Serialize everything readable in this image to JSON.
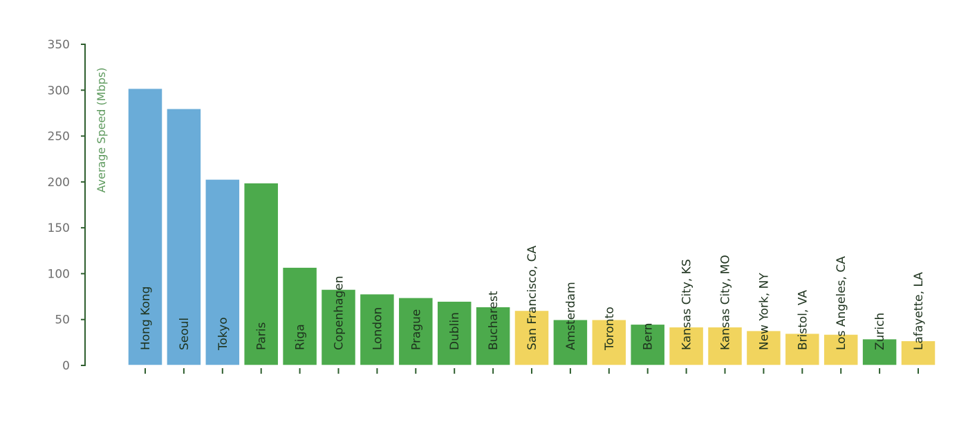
{
  "chart_data": {
    "type": "bar",
    "title": "",
    "xlabel": "",
    "ylabel": "Average Speed (Mbps)",
    "ylim": [
      0,
      350
    ],
    "yticks": [
      0,
      50,
      100,
      150,
      200,
      250,
      300,
      350
    ],
    "grid": false,
    "legend": "none",
    "categories": [
      "Hong Kong",
      "Seoul",
      "Tokyo",
      "Paris",
      "Riga",
      "Copenhagen",
      "London",
      "Prague",
      "Dublin",
      "Bucharest",
      "San Francisco, CA",
      "Amsterdam",
      "Toronto",
      "Bern",
      "Kansas City, KS",
      "Kansas City, MO",
      "New York, NY",
      "Bristol, VA",
      "Los Angeles, CA",
      "Zurich",
      "Lafayette, LA"
    ],
    "values": [
      302,
      280,
      203,
      199,
      107,
      83,
      78,
      74,
      70,
      64,
      60,
      50,
      50,
      45,
      42,
      42,
      38,
      35,
      34,
      29,
      27
    ],
    "bar_colors": [
      "#6aacd8",
      "#6aacd8",
      "#6aacd8",
      "#4caa4c",
      "#4caa4c",
      "#4caa4c",
      "#4caa4c",
      "#4caa4c",
      "#4caa4c",
      "#4caa4c",
      "#f1d45e",
      "#4caa4c",
      "#f1d45e",
      "#4caa4c",
      "#f1d45e",
      "#f1d45e",
      "#f1d45e",
      "#f1d45e",
      "#f1d45e",
      "#4caa4c",
      "#f1d45e"
    ]
  },
  "colors": {
    "asia": "#6aacd8",
    "europe": "#4caa4c",
    "north_america": "#f1d45e",
    "axis": "#2e5e2e"
  }
}
